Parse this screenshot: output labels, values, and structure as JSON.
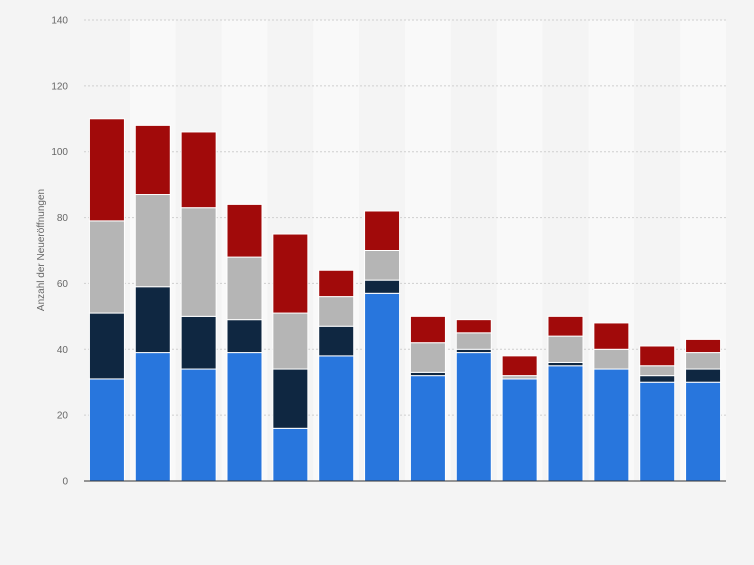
{
  "chart_data": {
    "type": "bar",
    "stacked": true,
    "categories": [
      "",
      "",
      "",
      "",
      "",
      "",
      "",
      "",
      "",
      "",
      "",
      "",
      "",
      ""
    ],
    "series": [
      {
        "values": [
          31,
          39,
          34,
          39,
          16,
          38,
          57,
          32,
          39,
          31,
          35,
          34,
          30,
          30
        ]
      },
      {
        "values": [
          20,
          20,
          16,
          10,
          18,
          9,
          4,
          1,
          1,
          0,
          1,
          0,
          2,
          4
        ]
      },
      {
        "values": [
          28,
          28,
          33,
          19,
          17,
          9,
          9,
          9,
          5,
          1,
          8,
          6,
          3,
          5
        ]
      },
      {
        "values": [
          31,
          21,
          23,
          16,
          24,
          8,
          12,
          8,
          4,
          6,
          6,
          8,
          6,
          4
        ]
      }
    ],
    "colors": [
      "#2876dd",
      "#0f2741",
      "#b5b5b5",
      "#a10a0a"
    ],
    "title": "",
    "xlabel": "",
    "ylabel": "Anzahl der Neueröffnungen",
    "ylim": [
      0,
      140
    ],
    "yticks": [
      0,
      20,
      40,
      60,
      80,
      100,
      120,
      140
    ],
    "grid": true,
    "legend": "none"
  }
}
